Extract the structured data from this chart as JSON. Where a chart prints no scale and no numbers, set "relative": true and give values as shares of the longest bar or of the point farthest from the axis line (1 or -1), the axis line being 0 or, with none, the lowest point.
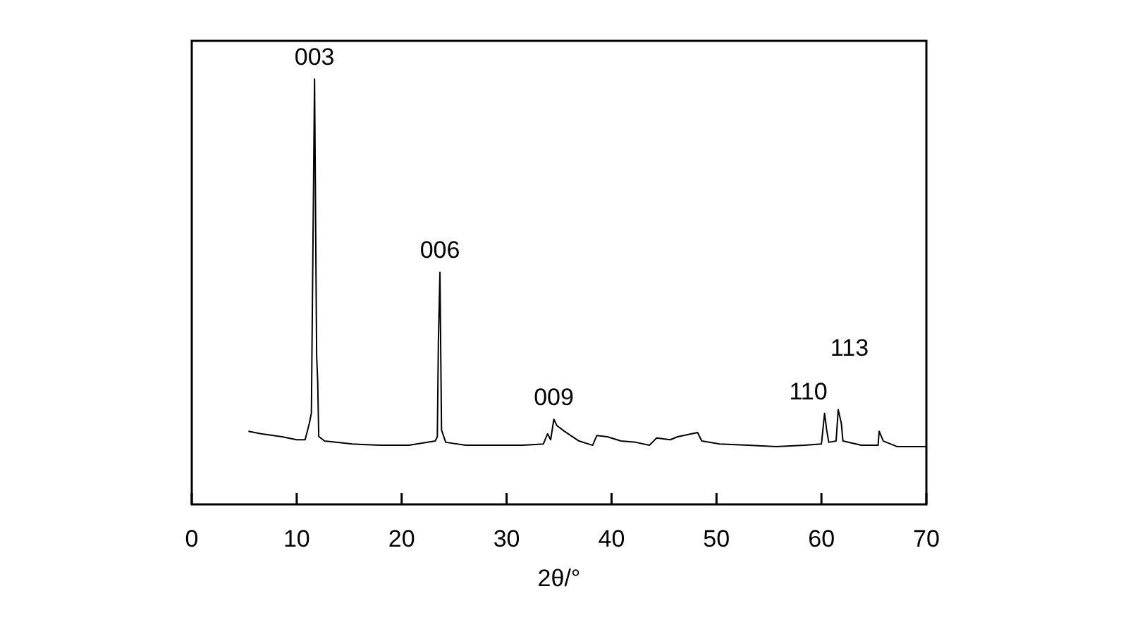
{
  "chart_data": {
    "type": "line",
    "relative": true,
    "xlabel": "2θ/°",
    "xlim": [
      0,
      70
    ],
    "xticks": [
      0,
      10,
      20,
      30,
      40,
      50,
      60,
      70
    ],
    "grid": false,
    "line_style": "solid",
    "annotations": [
      {
        "text": "003",
        "x": 11.7,
        "y": 1.0
      },
      {
        "text": "006",
        "x": 23.65,
        "y": 0.546
      },
      {
        "text": "009",
        "x": 34.5,
        "y": 0.2
      },
      {
        "text": "110",
        "x": 60.3,
        "y": 0.214
      },
      {
        "text": "113",
        "x": 61.6,
        "y": 0.223
      }
    ],
    "series": [
      {
        "color": "#000000",
        "x": [
          5.4,
          6.6,
          8.6,
          10.0,
          10.8,
          11.2,
          11.4,
          11.5,
          11.7,
          11.9,
          12.0,
          12.1,
          12.65,
          15.3,
          18.0,
          20.7,
          23.2,
          23.4,
          23.5,
          23.65,
          23.8,
          24.2,
          26.1,
          28.8,
          31.5,
          33.5,
          33.9,
          34.2,
          34.5,
          34.8,
          35.5,
          36.9,
          38.2,
          38.6,
          39.6,
          40.9,
          42.3,
          43.6,
          44.3,
          45.6,
          46.3,
          48.2,
          48.6,
          50.3,
          53.0,
          55.7,
          58.4,
          60.0,
          60.3,
          60.5,
          60.7,
          61.4,
          61.6,
          61.9,
          62.05,
          63.8,
          65.4,
          65.5,
          65.9,
          67.2,
          70
        ],
        "values": [
          0.172,
          0.166,
          0.159,
          0.152,
          0.152,
          0.19,
          0.215,
          0.48,
          1.0,
          0.35,
          0.29,
          0.16,
          0.149,
          0.142,
          0.139,
          0.139,
          0.149,
          0.159,
          0.38,
          0.546,
          0.175,
          0.146,
          0.139,
          0.139,
          0.139,
          0.142,
          0.166,
          0.152,
          0.2,
          0.185,
          0.172,
          0.149,
          0.139,
          0.162,
          0.159,
          0.149,
          0.146,
          0.139,
          0.156,
          0.152,
          0.159,
          0.169,
          0.149,
          0.142,
          0.139,
          0.136,
          0.139,
          0.142,
          0.214,
          0.175,
          0.146,
          0.149,
          0.223,
          0.19,
          0.149,
          0.139,
          0.139,
          0.172,
          0.149,
          0.136,
          0.136
        ]
      }
    ]
  }
}
